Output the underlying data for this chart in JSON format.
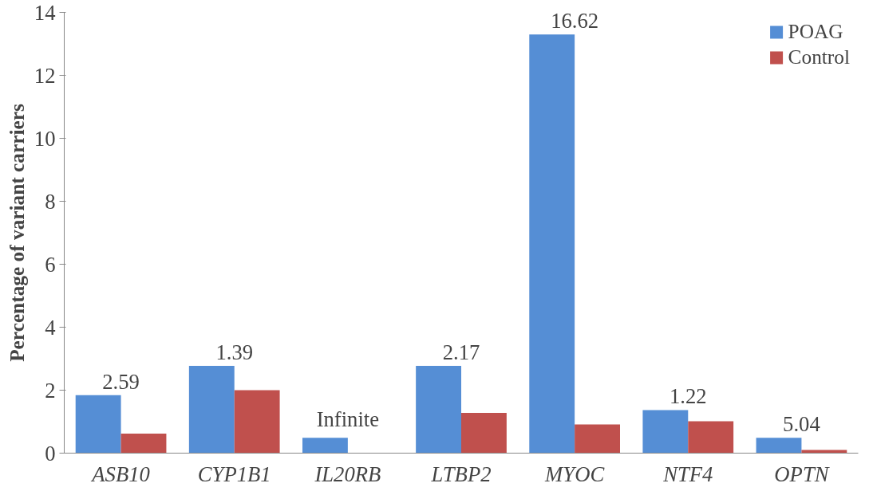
{
  "chart_data": {
    "type": "bar",
    "ylabel": "Percentage of variant carriers",
    "categories": [
      "ASB10",
      "CYP1B1",
      "IL20RB",
      "LTBP2",
      "MYOC",
      "NTF4",
      "OPTN"
    ],
    "series": [
      {
        "name": "POAG",
        "color": "#558ed5",
        "values": [
          1.84,
          2.77,
          0.49,
          2.77,
          13.3,
          1.37,
          0.49
        ]
      },
      {
        "name": "Control",
        "color": "#c0504d",
        "values": [
          0.62,
          2.0,
          0,
          1.28,
          0.91,
          1.01,
          0.1
        ]
      }
    ],
    "ylim": [
      0,
      14
    ],
    "yticks": [
      0,
      2,
      4,
      6,
      8,
      10,
      12,
      14
    ],
    "grid": false,
    "legend": "top right",
    "annotations": [
      {
        "text": "2.59",
        "x": "ASB10",
        "y": 1.84
      },
      {
        "text": "1.39",
        "x": "CYP1B1",
        "y": 2.77
      },
      {
        "text": "Infinite",
        "x": "IL20RB",
        "y": 0.49
      },
      {
        "text": "2.17",
        "x": "LTBP2",
        "y": 2.77
      },
      {
        "text": "16.62",
        "x": "MYOC",
        "y": 13.3
      },
      {
        "text": "1.22",
        "x": "NTF4",
        "y": 1.37
      },
      {
        "text": "5.04",
        "x": "OPTN",
        "y": 0.49
      }
    ]
  }
}
